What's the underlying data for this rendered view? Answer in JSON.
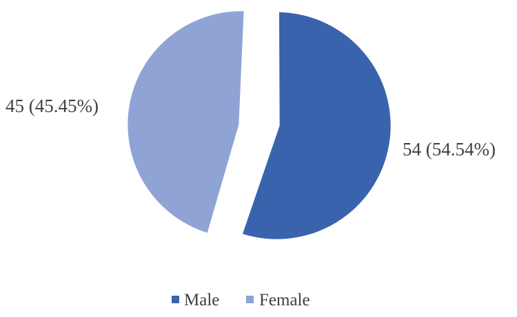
{
  "chart_data": {
    "type": "pie",
    "title": "",
    "slices": [
      {
        "name": "Male",
        "value": 54,
        "percent_label": "54 (54.54%)",
        "color": "#3a63ad"
      },
      {
        "name": "Female",
        "value": 45,
        "percent_label": "45 (45.45%)",
        "color": "#8fa4d5"
      }
    ],
    "legend": {
      "position": "bottom",
      "items": [
        {
          "label": "Male",
          "color": "#3a63ad"
        },
        {
          "label": "Female",
          "color": "#8fa4d5"
        }
      ]
    },
    "exploded": true
  }
}
